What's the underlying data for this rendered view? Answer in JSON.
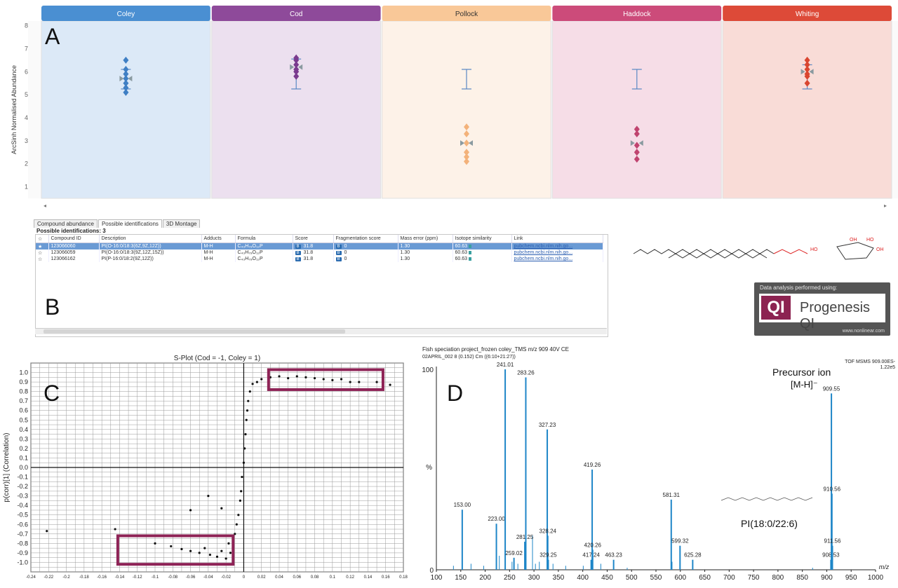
{
  "letters": {
    "a": "A",
    "b": "B",
    "c": "C",
    "d": "D"
  },
  "panel_a": {
    "groups": [
      {
        "name": "Coley",
        "header_color": "#4a8fd2",
        "bg": "#dce9f7",
        "stroke": "#3f7fc4"
      },
      {
        "name": "Cod",
        "header_color": "#8e4a9a",
        "bg": "#ece0ef",
        "stroke": "#7a3a8e"
      },
      {
        "name": "Pollock",
        "header_color": "#f9c898",
        "bg": "#fdf2e8",
        "stroke": "#f3b27a"
      },
      {
        "name": "Haddock",
        "header_color": "#cc4b7a",
        "bg": "#f6dde7",
        "stroke": "#c0436f"
      },
      {
        "name": "Whiting",
        "header_color": "#dd4a38",
        "bg": "#f9dcd7",
        "stroke": "#d9452f"
      }
    ],
    "ylabel": "ArcSinh Normalised Abundance"
  },
  "panel_b": {
    "tabs": [
      "Compound abundance",
      "Possible identifications",
      "3D Montage"
    ],
    "title": "Possible identifications: 3",
    "columns": [
      "Compound ID",
      "Description",
      "Adducts",
      "Formula",
      "Score",
      "Fragmentation score",
      "Mass error (ppm)",
      "Isotope similarity",
      "Link"
    ],
    "rows": [
      {
        "id": "123066060",
        "desc": "PI(O-16:0/18:3(6Z,9Z,12Z))",
        "adduct": "M-H",
        "formula": "C₄₃H₇₉O₁₂P",
        "score": "31.8",
        "frag": "0",
        "mass": "1.30",
        "iso": "60.63",
        "link": "pubchem.ncbi.nlm.nih.go..."
      },
      {
        "id": "123066059",
        "desc": "PI(O-16:0/18:3(9Z,12Z,15Z))",
        "adduct": "M-H",
        "formula": "C₄₃H₇₉O₁₂P",
        "score": "31.8",
        "frag": "0",
        "mass": "1.30",
        "iso": "60.63",
        "link": "pubchem.ncbi.nlm.nih.go..."
      },
      {
        "id": "123066162",
        "desc": "PI(P-16:0/18:2(9Z,12Z))",
        "adduct": "M-H",
        "formula": "C₄₃H₇₉O₁₂P",
        "score": "31.8",
        "frag": "0",
        "mass": "1.30",
        "iso": "60.63",
        "link": "pubchem.ncbi.nlm.nih.go..."
      }
    ],
    "b_badge": "B",
    "progenesis": {
      "top": "Data analysis performed using:",
      "qi": "QI",
      "name": "Progenesis QI",
      "url": "www.nonlinear.com"
    },
    "mol_labels": [
      "HO",
      "OH",
      "HO",
      "OH"
    ]
  },
  "panel_c": {
    "footer": "S-Plot (Cod = -1, Coley = 1)"
  },
  "panel_d": {
    "header_line1": "Fish speciation project_frozen coley_TMS m/z 909 40V CE",
    "header_line2": "02APRIL_002 8 (0.152) Cm ((6:10+21:27))",
    "top_right_1": "TOF MSMS 909.00ES-",
    "top_right_2": "1.22e5",
    "precursor_1": "Precursor ion",
    "precursor_2": "[M-H]⁻",
    "compound": "PI(18:0/22:6)",
    "xlabel": "m/z"
  },
  "chart_data": [
    {
      "type": "scatter",
      "title": "",
      "ylabel": "ArcSinh Normalised Abundance",
      "ylim": [
        0.5,
        8.2
      ],
      "yticks": [
        1,
        2,
        3,
        4,
        5,
        6,
        7,
        8
      ],
      "categories": [
        "Coley",
        "Cod",
        "Pollock",
        "Haddock",
        "Whiting"
      ],
      "series": [
        {
          "name": "Coley",
          "points": [
            5.1,
            5.3,
            5.5,
            5.7,
            5.9,
            6.1,
            6.5
          ],
          "mean": 5.7,
          "err": [
            5.25,
            6.1
          ]
        },
        {
          "name": "Cod",
          "points": [
            5.8,
            6.0,
            6.1,
            6.3,
            6.5,
            6.6
          ],
          "mean": 6.2,
          "err": [
            5.25,
            6.55
          ]
        },
        {
          "name": "Pollock",
          "points": [
            2.1,
            2.3,
            2.5,
            2.9,
            3.3,
            3.6
          ],
          "mean": 2.9,
          "err": [
            5.25,
            6.1
          ]
        },
        {
          "name": "Haddock",
          "points": [
            2.2,
            2.5,
            2.8,
            3.3,
            3.5
          ],
          "mean": 2.9,
          "err": [
            5.25,
            6.1
          ]
        },
        {
          "name": "Whiting",
          "points": [
            5.5,
            5.8,
            5.9,
            6.1,
            6.3,
            6.5
          ],
          "mean": 6.0,
          "err": [
            5.25,
            6.3
          ]
        }
      ]
    },
    {
      "type": "scatter",
      "title": "S-Plot (Cod = -1, Coley = 1)",
      "xlabel": "",
      "ylabel": "p(corr)[1] (Correlation)",
      "xlim": [
        -0.24,
        0.18
      ],
      "ylim": [
        -1.1,
        1.1
      ],
      "xticks": [
        -0.24,
        -0.22,
        -0.2,
        -0.18,
        -0.16,
        -0.14,
        -0.12,
        -0.1,
        -0.08,
        -0.06,
        -0.04,
        -0.02,
        0,
        0.02,
        0.04,
        0.06,
        0.08,
        0.1,
        0.12,
        0.14,
        0.16,
        0.18
      ],
      "yticks": [
        -1.0,
        -0.9,
        -0.8,
        -0.7,
        -0.6,
        -0.5,
        -0.4,
        -0.3,
        -0.2,
        -0.1,
        0.0,
        0.1,
        0.2,
        0.3,
        0.4,
        0.5,
        0.6,
        0.7,
        0.8,
        0.9,
        1.0
      ],
      "highlight_boxes": [
        {
          "x": [
            0.028,
            0.157
          ],
          "y": [
            0.82,
            1.03
          ]
        },
        {
          "x": [
            -0.142,
            -0.012
          ],
          "y": [
            -0.72,
            -1.02
          ]
        }
      ],
      "points": [
        [
          -0.222,
          -0.67
        ],
        [
          -0.145,
          -0.65
        ],
        [
          -0.12,
          -0.72
        ],
        [
          -0.1,
          -0.8
        ],
        [
          -0.082,
          -0.83
        ],
        [
          -0.07,
          -0.86
        ],
        [
          -0.06,
          -0.88
        ],
        [
          -0.05,
          -0.9
        ],
        [
          -0.044,
          -0.85
        ],
        [
          -0.038,
          -0.92
        ],
        [
          -0.03,
          -0.94
        ],
        [
          -0.025,
          -0.88
        ],
        [
          -0.02,
          -0.96
        ],
        [
          -0.017,
          -0.8
        ],
        [
          -0.015,
          -0.9
        ],
        [
          -0.012,
          -0.85
        ],
        [
          -0.01,
          -0.7
        ],
        [
          -0.008,
          -0.6
        ],
        [
          -0.006,
          -0.5
        ],
        [
          -0.004,
          -0.35
        ],
        [
          -0.003,
          -0.25
        ],
        [
          -0.002,
          -0.1
        ],
        [
          0.0,
          0.05
        ],
        [
          0.001,
          0.2
        ],
        [
          0.002,
          0.35
        ],
        [
          0.003,
          0.5
        ],
        [
          0.004,
          0.6
        ],
        [
          0.005,
          0.7
        ],
        [
          0.007,
          0.8
        ],
        [
          0.01,
          0.88
        ],
        [
          0.015,
          0.9
        ],
        [
          0.02,
          0.93
        ],
        [
          0.03,
          0.95
        ],
        [
          0.04,
          0.96
        ],
        [
          0.05,
          0.94
        ],
        [
          0.06,
          0.96
        ],
        [
          0.07,
          0.95
        ],
        [
          0.08,
          0.94
        ],
        [
          0.09,
          0.93
        ],
        [
          0.1,
          0.92
        ],
        [
          0.11,
          0.93
        ],
        [
          0.12,
          0.9
        ],
        [
          0.13,
          0.9
        ],
        [
          0.15,
          0.9
        ],
        [
          0.165,
          0.87
        ],
        [
          -0.04,
          -0.3
        ],
        [
          -0.025,
          -0.43
        ],
        [
          -0.06,
          -0.45
        ]
      ]
    },
    {
      "type": "bar",
      "title": "Fish speciation project_frozen coley_TMS m/z 909 40V CE",
      "xlabel": "m/z",
      "ylabel": "%",
      "xlim": [
        100,
        1000
      ],
      "ylim": [
        0,
        100
      ],
      "xticks": [
        100,
        150,
        200,
        250,
        300,
        350,
        400,
        450,
        500,
        550,
        600,
        650,
        700,
        750,
        800,
        850,
        900,
        950,
        1000
      ],
      "peaks": [
        {
          "mz": 153.0,
          "rel": 30,
          "label": "153.00"
        },
        {
          "mz": 223.0,
          "rel": 23,
          "label": "223.00"
        },
        {
          "mz": 241.01,
          "rel": 100,
          "label": "241.01"
        },
        {
          "mz": 259.02,
          "rel": 6,
          "label": "259.02"
        },
        {
          "mz": 281.25,
          "rel": 14,
          "label": "281.25"
        },
        {
          "mz": 283.26,
          "rel": 96,
          "label": "283.26"
        },
        {
          "mz": 327.23,
          "rel": 70,
          "label": "327.23"
        },
        {
          "mz": 328.24,
          "rel": 17,
          "label": "328.24"
        },
        {
          "mz": 329.25,
          "rel": 5,
          "label": "329.25"
        },
        {
          "mz": 417.24,
          "rel": 5,
          "label": "417.24"
        },
        {
          "mz": 419.26,
          "rel": 50,
          "label": "419.26"
        },
        {
          "mz": 420.26,
          "rel": 10,
          "label": "420.26"
        },
        {
          "mz": 463.23,
          "rel": 5,
          "label": "463.23"
        },
        {
          "mz": 581.31,
          "rel": 35,
          "label": "581.31"
        },
        {
          "mz": 599.32,
          "rel": 12,
          "label": "599.32"
        },
        {
          "mz": 625.28,
          "rel": 5,
          "label": "625.28"
        },
        {
          "mz": 908.53,
          "rel": 5,
          "label": "908.53"
        },
        {
          "mz": 909.55,
          "rel": 88,
          "label": "909.55"
        },
        {
          "mz": 910.56,
          "rel": 38,
          "label": "910.56"
        },
        {
          "mz": 911.56,
          "rel": 12,
          "label": "911.56"
        }
      ],
      "minor_peaks": [
        {
          "mz": 135,
          "rel": 2
        },
        {
          "mz": 171,
          "rel": 3
        },
        {
          "mz": 197,
          "rel": 2
        },
        {
          "mz": 229,
          "rel": 7
        },
        {
          "mz": 255,
          "rel": 4
        },
        {
          "mz": 267,
          "rel": 3
        },
        {
          "mz": 297,
          "rel": 17
        },
        {
          "mz": 303,
          "rel": 3
        },
        {
          "mz": 311,
          "rel": 4
        },
        {
          "mz": 339,
          "rel": 3
        },
        {
          "mz": 365,
          "rel": 2
        },
        {
          "mz": 401,
          "rel": 2
        },
        {
          "mz": 437,
          "rel": 3
        },
        {
          "mz": 491,
          "rel": 1
        },
        {
          "mz": 583,
          "rel": 4
        },
        {
          "mz": 871,
          "rel": 1
        }
      ]
    }
  ]
}
